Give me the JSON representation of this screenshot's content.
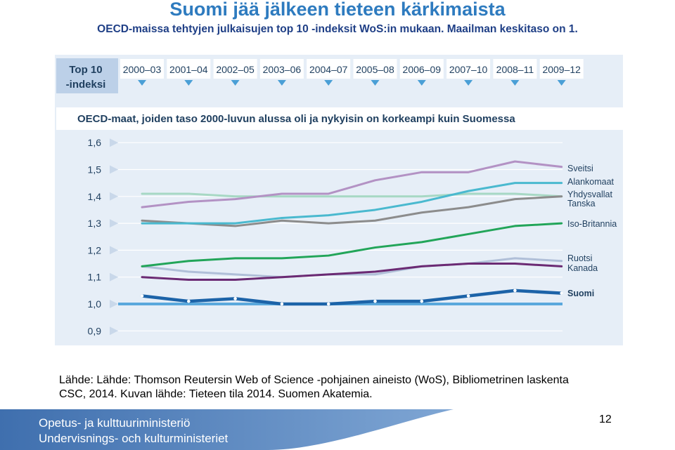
{
  "slide": {
    "title": "Suomi jää jälkeen tieteen kärkimaista",
    "subtitle": "OECD-maissa tehtyjen julkaisujen top 10 -indeksit WoS:in mukaan. Maailman keskitaso on 1.",
    "source_line1": "Lähde: Lähde: Thomson Reutersin Web of Science -pohjainen aineisto (WoS), Bibliometrinen laskenta",
    "source_line2": "CSC, 2014. Kuvan lähde: Tieteen tila 2014. Suomen Akatemia.",
    "ministry_fi": "Opetus- ja kulttuuriministeriö",
    "ministry_sv": "Undervisnings- och kulturministeriet",
    "page_number": "12"
  },
  "colors": {
    "title": "#2e7bbf",
    "subtitle": "#1f3f86",
    "chart_bg": "#e6eef7",
    "header_box": "#bcd0e8",
    "marker": "#4a9fd6",
    "footer": "#4a7ab8"
  },
  "chart_data": {
    "type": "line",
    "title": "OECD-maat, joiden taso 2000-luvun alussa oli ja nykyisin on korkeampi kuin Suomessa",
    "index_label_line1": "Top 10",
    "index_label_line2": "-indeksi",
    "categories": [
      "2000–03",
      "2001–04",
      "2002–05",
      "2003–06",
      "2004–07",
      "2005–08",
      "2006–09",
      "2007–10",
      "2008–11",
      "2009–12"
    ],
    "ylim": [
      0.9,
      1.65
    ],
    "yticks": [
      "1,6",
      "1,5",
      "1,4",
      "1,3",
      "1,2",
      "1,1",
      "1,0",
      "0,9"
    ],
    "reference_line": 1.0,
    "series": [
      {
        "name": "Sveitsi",
        "color": "#b392c4",
        "values": [
          1.36,
          1.38,
          1.39,
          1.41,
          1.41,
          1.46,
          1.49,
          1.49,
          1.53,
          1.51
        ]
      },
      {
        "name": "Alankomaat",
        "color": "#4ab9cf",
        "values": [
          1.3,
          1.3,
          1.3,
          1.32,
          1.33,
          1.35,
          1.38,
          1.42,
          1.45,
          1.45
        ]
      },
      {
        "name": "Yhdysvallat",
        "color": "#a7d8c4",
        "values": [
          1.41,
          1.41,
          1.4,
          1.4,
          1.4,
          1.4,
          1.4,
          1.41,
          1.41,
          1.4
        ]
      },
      {
        "name": "Tanska",
        "color": "#8c8c8c",
        "values": [
          1.31,
          1.3,
          1.29,
          1.31,
          1.3,
          1.31,
          1.34,
          1.36,
          1.39,
          1.4
        ]
      },
      {
        "name": "Iso-Britannia",
        "color": "#22a559",
        "values": [
          1.14,
          1.16,
          1.17,
          1.17,
          1.18,
          1.21,
          1.23,
          1.26,
          1.29,
          1.3
        ]
      },
      {
        "name": "Ruotsi",
        "color": "#b0bfd8",
        "values": [
          1.14,
          1.12,
          1.11,
          1.1,
          1.11,
          1.11,
          1.14,
          1.15,
          1.17,
          1.16
        ]
      },
      {
        "name": "Kanada",
        "color": "#6b2a73",
        "values": [
          1.1,
          1.09,
          1.09,
          1.1,
          1.11,
          1.12,
          1.14,
          1.15,
          1.15,
          1.14
        ]
      },
      {
        "name": "Suomi",
        "color": "#1c63a8",
        "values": [
          1.03,
          1.01,
          1.02,
          1.0,
          1.0,
          1.01,
          1.01,
          1.03,
          1.05,
          1.04
        ]
      }
    ]
  }
}
